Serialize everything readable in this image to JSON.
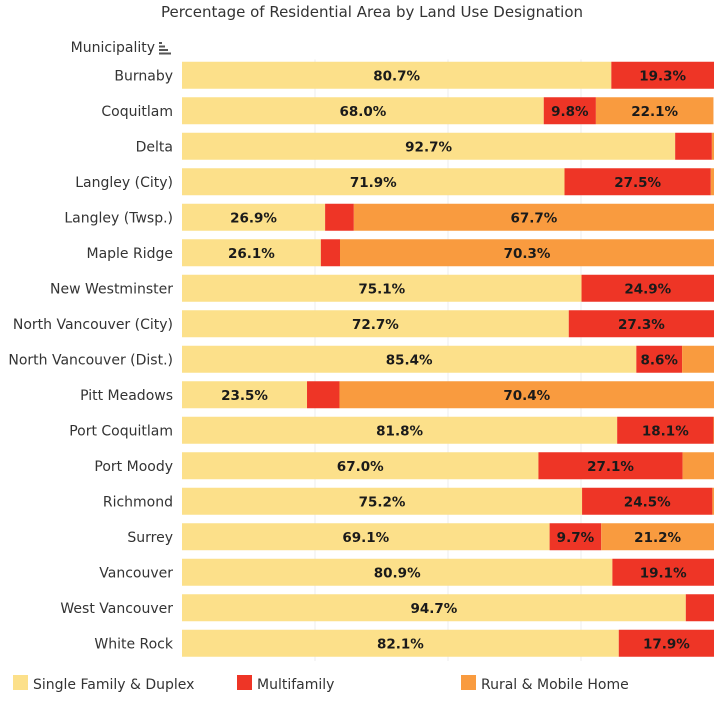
{
  "colors": {
    "single": "#FCE08A",
    "multi": "#EE3526",
    "rural": "#F99B3F"
  },
  "chart_data": {
    "type": "bar",
    "orientation": "horizontal",
    "stacked": true,
    "title": "Percentage of Residential Area by  Land Use Designation",
    "column_header": "Municipality",
    "sort_icon": "sort-descending-icon",
    "xlim": [
      0,
      100
    ],
    "grid": true,
    "legend_position": "bottom",
    "categories": [
      "Burnaby",
      "Coquitlam",
      "Delta",
      "Langley (City)",
      "Langley (Twsp.)",
      "Maple Ridge",
      "New Westminster",
      "North Vancouver (City)",
      "North Vancouver (Dist.)",
      "Pitt Meadows",
      "Port Coquitlam",
      "Port Moody",
      "Richmond",
      "Surrey",
      "Vancouver",
      "West Vancouver",
      "White Rock"
    ],
    "series": [
      {
        "name": "Single Family & Duplex",
        "values": [
          80.7,
          68.0,
          92.7,
          71.9,
          26.9,
          26.1,
          75.1,
          72.7,
          85.4,
          23.5,
          81.8,
          67.0,
          75.2,
          69.1,
          80.9,
          94.7,
          82.1
        ],
        "labels": [
          "80.7%",
          "68.0%",
          "92.7%",
          "71.9%",
          "26.9%",
          "26.1%",
          "75.1%",
          "72.7%",
          "85.4%",
          "23.5%",
          "81.8%",
          "67.0%",
          "75.2%",
          "69.1%",
          "80.9%",
          "94.7%",
          "82.1%"
        ]
      },
      {
        "name": "Multifamily",
        "values": [
          19.3,
          9.8,
          6.9,
          27.5,
          5.4,
          3.6,
          24.9,
          27.3,
          8.6,
          6.1,
          18.1,
          27.1,
          24.5,
          9.7,
          19.1,
          5.3,
          17.9
        ],
        "labels": [
          "19.3%",
          "9.8%",
          "",
          "27.5%",
          "",
          "",
          "24.9%",
          "27.3%",
          "8.6%",
          "",
          "18.1%",
          "27.1%",
          "24.5%",
          "9.7%",
          "19.1%",
          "",
          "17.9%"
        ]
      },
      {
        "name": "Rural & Mobile Home",
        "values": [
          0.0,
          22.1,
          0.4,
          0.6,
          67.7,
          70.3,
          0.0,
          0.0,
          6.0,
          70.4,
          0.1,
          5.9,
          0.3,
          21.2,
          0.0,
          0.0,
          0.0
        ],
        "labels": [
          "",
          "22.1%",
          "",
          "",
          "67.7%",
          "70.3%",
          "",
          "",
          "",
          "70.4%",
          "",
          "",
          "",
          "21.2%",
          "",
          "",
          ""
        ]
      }
    ]
  }
}
